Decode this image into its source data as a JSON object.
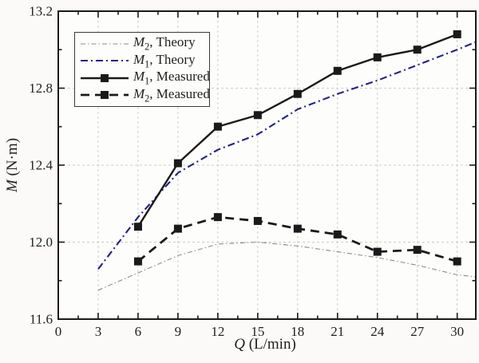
{
  "chart_data": {
    "type": "line",
    "title": "",
    "xlabel": "Q (L/min)",
    "ylabel": "M (N·m)",
    "x_axis": {
      "symbol": "Q",
      "unit_rest": " (L/min)",
      "range": [
        0,
        31.4
      ],
      "major_ticks": [
        0,
        3,
        6,
        9,
        12,
        15,
        18,
        21,
        24,
        27,
        30
      ],
      "tick_labels": [
        "0",
        "3",
        "6",
        "9",
        "12",
        "15",
        "18",
        "21",
        "24",
        "27",
        "30"
      ],
      "minor_ticks": [
        1.5,
        4.5,
        7.5,
        10.5,
        13.5,
        16.5,
        19.5,
        22.5,
        25.5,
        28.5
      ],
      "gridlines": [
        3,
        6,
        9,
        12,
        15,
        18,
        21,
        24,
        27,
        30
      ]
    },
    "y_axis": {
      "symbol": "M",
      "unit_rest": " (N·m)",
      "range": [
        11.6,
        13.2
      ],
      "major_ticks": [
        11.6,
        12.0,
        12.4,
        12.8,
        13.2
      ],
      "tick_labels": [
        "11.6",
        "12.0",
        "12.4",
        "12.8",
        "13.2"
      ],
      "minor_ticks": [
        11.8,
        12.2,
        12.6,
        13.0
      ],
      "gridlines": [
        12.0,
        12.4,
        12.8
      ]
    },
    "grid": true,
    "series": [
      {
        "id": "m2-theory",
        "name": "M2, Theory",
        "color": "#8c8c8c",
        "width": 1.1,
        "dash": "6 3 1.5 3",
        "marker": false,
        "x": [
          3,
          6,
          9,
          12,
          15,
          18,
          21,
          24,
          27,
          30,
          31.4
        ],
        "values": [
          11.75,
          11.84,
          11.93,
          11.99,
          12.0,
          11.98,
          11.95,
          11.92,
          11.88,
          11.83,
          11.82
        ]
      },
      {
        "id": "m1-theory",
        "name": "M1, Theory",
        "color": "#23237d",
        "width": 2.1,
        "dash": "9 4 2 4",
        "marker": false,
        "x": [
          3,
          6,
          9,
          12,
          15,
          18,
          21,
          24,
          27,
          30,
          31.4
        ],
        "values": [
          11.86,
          12.13,
          12.36,
          12.48,
          12.56,
          12.69,
          12.77,
          12.84,
          12.92,
          13.0,
          13.04
        ]
      },
      {
        "id": "m1-measured",
        "name": "M1, Measured",
        "color": "#1a1a1a",
        "width": 2.4,
        "dash": null,
        "marker": "square",
        "x": [
          6,
          9,
          12,
          15,
          18,
          21,
          24,
          27,
          30
        ],
        "values": [
          12.08,
          12.41,
          12.6,
          12.66,
          12.77,
          12.89,
          12.96,
          13.0,
          13.08
        ]
      },
      {
        "id": "m2-measured",
        "name": "M2, Measured",
        "color": "#1a1a1a",
        "width": 2.8,
        "dash": "11 7",
        "marker": "square",
        "x": [
          6,
          9,
          12,
          15,
          18,
          21,
          24,
          27,
          30
        ],
        "values": [
          11.9,
          12.07,
          12.13,
          12.11,
          12.07,
          12.04,
          11.95,
          11.96,
          11.9
        ]
      }
    ],
    "legend": {
      "position": "top-left",
      "entries": [
        {
          "series": "m2-theory",
          "sym": "M",
          "sub": "2",
          "rest": ", Theory"
        },
        {
          "series": "m1-theory",
          "sym": "M",
          "sub": "1",
          "rest": ", Theory"
        },
        {
          "series": "m1-measured",
          "sym": "M",
          "sub": "1",
          "rest": ", Measured"
        },
        {
          "series": "m2-measured",
          "sym": "M",
          "sub": "2",
          "rest": ", Measured"
        }
      ]
    },
    "colors": {
      "gridline": "#cccccc",
      "axis": "#1a1a1a",
      "text": "#1f1f1f",
      "background": "#fdfdfb"
    }
  }
}
